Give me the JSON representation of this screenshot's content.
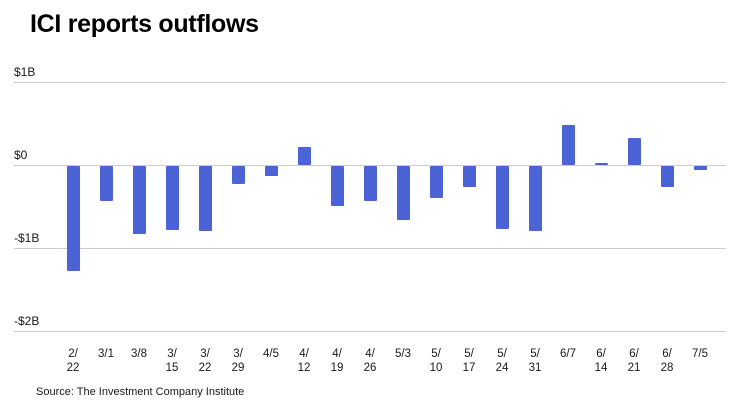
{
  "title": "ICI reports outflows",
  "source": "Source: The Investment Company Institute",
  "colors": {
    "bar": "#4c63d6",
    "grid": "#cccccc",
    "text": "#1a1a1a"
  },
  "chart_data": {
    "type": "bar",
    "title": "ICI reports outflows",
    "categories": [
      "2/22",
      "3/1",
      "3/8",
      "3/15",
      "3/22",
      "3/29",
      "4/5",
      "4/12",
      "4/19",
      "4/26",
      "5/3",
      "5/10",
      "5/17",
      "5/24",
      "5/31",
      "6/7",
      "6/14",
      "6/21",
      "6/28",
      "7/5"
    ],
    "category_labels": [
      [
        "2/",
        "22"
      ],
      [
        "3/1"
      ],
      [
        "3/8"
      ],
      [
        "3/",
        "15"
      ],
      [
        "3/",
        "22"
      ],
      [
        "3/",
        "29"
      ],
      [
        "4/5"
      ],
      [
        "4/",
        "12"
      ],
      [
        "4/",
        "19"
      ],
      [
        "4/",
        "26"
      ],
      [
        "5/3"
      ],
      [
        "5/",
        "10"
      ],
      [
        "5/",
        "17"
      ],
      [
        "5/",
        "24"
      ],
      [
        "5/",
        "31"
      ],
      [
        "6/7"
      ],
      [
        "6/",
        "14"
      ],
      [
        "6/",
        "21"
      ],
      [
        "6/",
        "28"
      ],
      [
        "7/5"
      ]
    ],
    "values": [
      -1.27,
      -0.42,
      -0.82,
      -0.77,
      -0.78,
      -0.22,
      -0.12,
      0.22,
      -0.48,
      -0.42,
      -0.65,
      -0.38,
      -0.25,
      -0.76,
      -0.78,
      0.48,
      0.03,
      0.32,
      -0.25,
      -0.05
    ],
    "unit_label": "$B",
    "xlabel": "",
    "ylabel": "",
    "ylim": [
      -2,
      1
    ],
    "yticks": [
      "$1B",
      "$0",
      "-$1B",
      "-$2B"
    ],
    "ytick_values": [
      1,
      0,
      -1,
      -2
    ],
    "grid": true,
    "legend": false
  }
}
